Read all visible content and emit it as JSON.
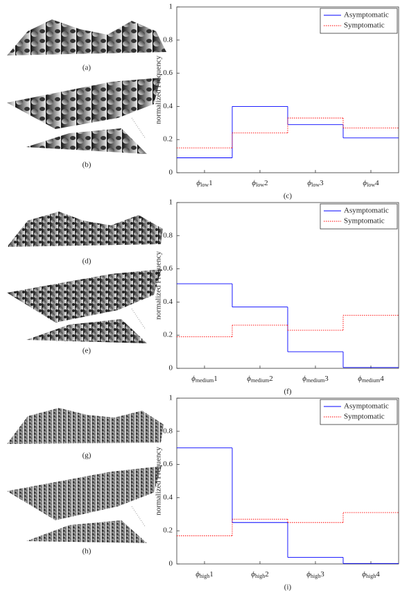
{
  "figure_captions": [
    "(a)",
    "(b)",
    "(d)",
    "(e)",
    "(g)",
    "(h)"
  ],
  "chart_data": [
    {
      "type": "step",
      "caption": "(c)",
      "ylabel": "normalized Frequency",
      "categories": [
        "ϕlow1",
        "ϕlow2",
        "ϕlow3",
        "ϕlow4"
      ],
      "series": [
        {
          "name": "Asymptomatic",
          "color": "#0000ff",
          "values": [
            0.09,
            0.4,
            0.29,
            0.21
          ]
        },
        {
          "name": "Symptomatic",
          "color": "#ff0000",
          "values": [
            0.15,
            0.24,
            0.33,
            0.27
          ]
        }
      ],
      "ylim": [
        0,
        1
      ],
      "yticks": [
        0,
        0.2,
        0.4,
        0.6,
        0.8,
        1
      ],
      "legend": "top-right"
    },
    {
      "type": "step",
      "caption": "(f)",
      "ylabel": "normalized Frequency",
      "categories": [
        "ϕmedium1",
        "ϕmedium2",
        "ϕmedium3",
        "ϕmedium4"
      ],
      "series": [
        {
          "name": "Asymptomatic",
          "color": "#0000ff",
          "values": [
            0.51,
            0.37,
            0.1,
            0.005
          ]
        },
        {
          "name": "Symptomatic",
          "color": "#ff0000",
          "values": [
            0.19,
            0.26,
            0.23,
            0.32
          ]
        }
      ],
      "ylim": [
        0,
        1
      ],
      "yticks": [
        0,
        0.2,
        0.4,
        0.6,
        0.8,
        1
      ],
      "legend": "top-right"
    },
    {
      "type": "step",
      "caption": "(i)",
      "ylabel": "normalized Frequency",
      "categories": [
        "ϕhigh1",
        "ϕhigh2",
        "ϕhigh3",
        "ϕhigh4"
      ],
      "series": [
        {
          "name": "Asymptomatic",
          "color": "#0000ff",
          "values": [
            0.7,
            0.25,
            0.04,
            0.003
          ]
        },
        {
          "name": "Symptomatic",
          "color": "#ff0000",
          "values": [
            0.17,
            0.27,
            0.25,
            0.31
          ]
        }
      ],
      "ylim": [
        0,
        1
      ],
      "yticks": [
        0,
        0.2,
        0.4,
        0.6,
        0.8,
        1
      ],
      "legend": "top-right"
    }
  ]
}
